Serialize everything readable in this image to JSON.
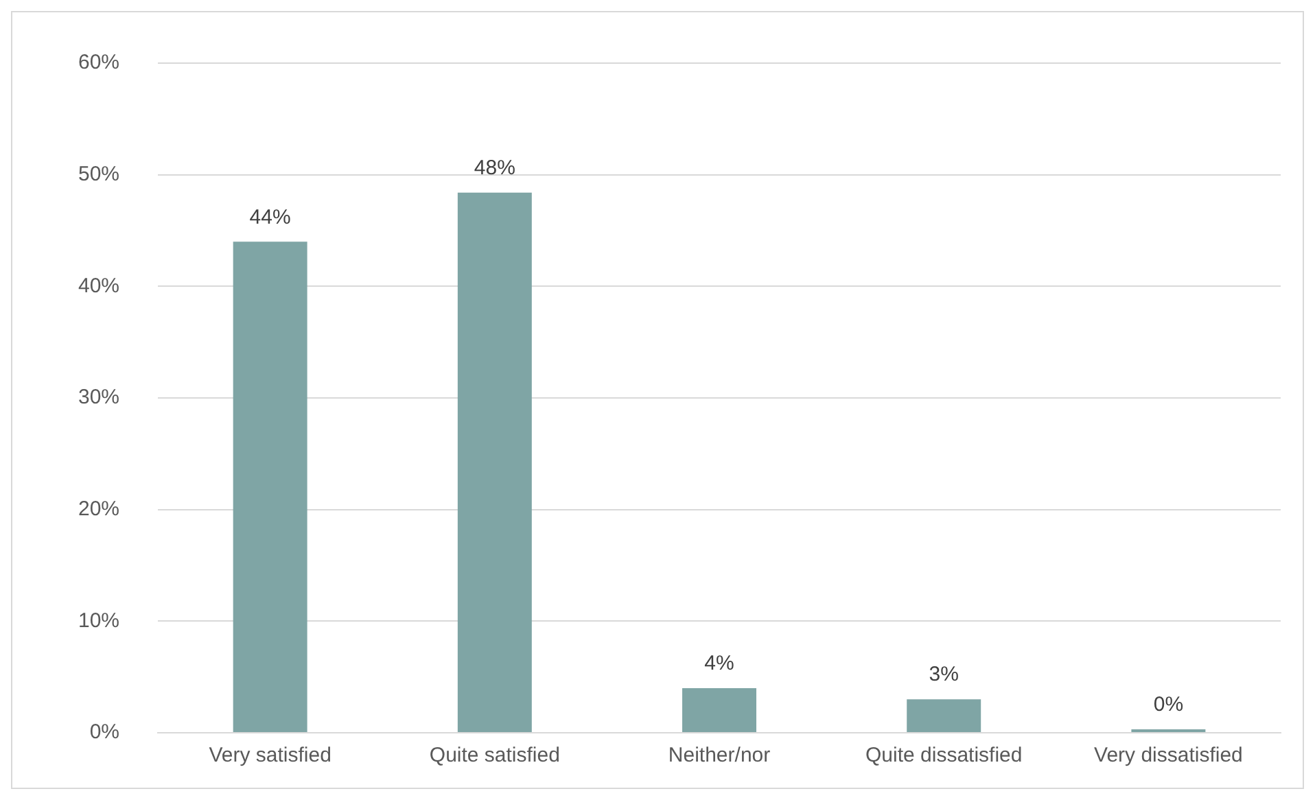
{
  "chart_data": {
    "type": "bar",
    "categories": [
      "Very satisfied",
      "Quite satisfied",
      "Neither/nor",
      "Quite dissatisfied",
      "Very dissatisfied"
    ],
    "values": [
      44,
      48.4,
      4,
      3,
      0.3
    ],
    "value_labels": [
      "44%",
      "48%",
      "4%",
      "3%",
      "0%"
    ],
    "color": "#7fa5a5",
    "ylim": [
      0,
      60
    ],
    "yticks": [
      {
        "value": 0,
        "label": "0%"
      },
      {
        "value": 10,
        "label": "10%"
      },
      {
        "value": 20,
        "label": "20%"
      },
      {
        "value": 30,
        "label": "30%"
      },
      {
        "value": 40,
        "label": "40%"
      },
      {
        "value": 50,
        "label": "50%"
      },
      {
        "value": 60,
        "label": "60%"
      }
    ],
    "grid": "y"
  }
}
